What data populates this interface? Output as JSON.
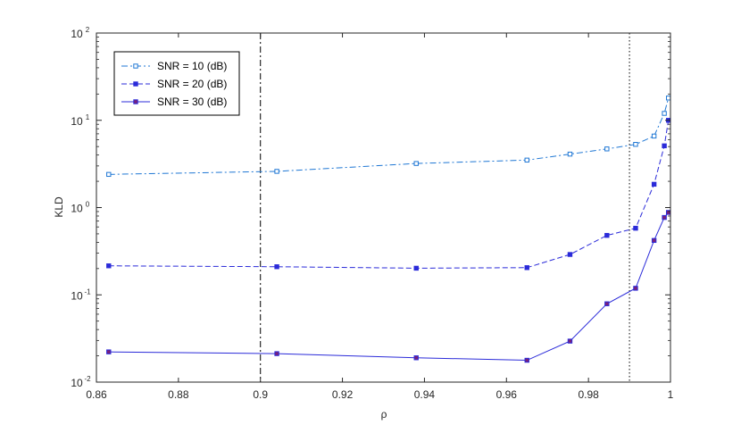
{
  "chart_data": {
    "type": "line",
    "xlabel": "ρ",
    "ylabel": "KLD",
    "xlim": [
      0.86,
      1.0
    ],
    "ylim": [
      0.01,
      100
    ],
    "yscale": "log",
    "grid": false,
    "legend_position": "top-left",
    "x_ticks": [
      "0.86",
      "0.88",
      "0.9",
      "0.92",
      "0.94",
      "0.96",
      "0.98",
      "1"
    ],
    "y_ticks": [
      {
        "base": "10",
        "exp": "-2"
      },
      {
        "base": "10",
        "exp": "-1"
      },
      {
        "base": "10",
        "exp": "0"
      },
      {
        "base": "10",
        "exp": "1"
      },
      {
        "base": "10",
        "exp": "2"
      }
    ],
    "reference_lines": [
      {
        "x": 0.9,
        "style": "dashdot",
        "color": "#000000"
      },
      {
        "x": 0.99,
        "style": "dotted",
        "color": "#000000"
      }
    ],
    "series": [
      {
        "name": "SNR = 10 (dB)",
        "color": "#1f77d4",
        "marker_fill": "#ffffff",
        "line_style": "dashdot",
        "x": [
          0.863,
          0.904,
          0.938,
          0.965,
          0.9755,
          0.9845,
          0.9915,
          0.996,
          0.9985,
          0.9995
        ],
        "y": [
          2.4,
          2.6,
          3.2,
          3.5,
          4.1,
          4.7,
          5.3,
          6.6,
          12.0,
          18.0
        ]
      },
      {
        "name": "SNR = 20 (dB)",
        "color": "#2b2bd9",
        "marker_fill": "#2b2bd9",
        "line_style": "dashed",
        "x": [
          0.863,
          0.904,
          0.938,
          0.965,
          0.9755,
          0.9845,
          0.9915,
          0.996,
          0.9985,
          0.9995
        ],
        "y": [
          0.215,
          0.21,
          0.202,
          0.205,
          0.29,
          0.48,
          0.58,
          1.85,
          5.1,
          10.0
        ]
      },
      {
        "name": "SNR = 30 (dB)",
        "color": "#2b2bd9",
        "marker_fill": "#7a1f7a",
        "line_style": "solid",
        "x": [
          0.863,
          0.904,
          0.938,
          0.965,
          0.9755,
          0.9845,
          0.9915,
          0.996,
          0.9985,
          0.9995
        ],
        "y": [
          0.0222,
          0.0212,
          0.019,
          0.0178,
          0.0295,
          0.079,
          0.119,
          0.42,
          0.77,
          0.88
        ]
      }
    ]
  }
}
